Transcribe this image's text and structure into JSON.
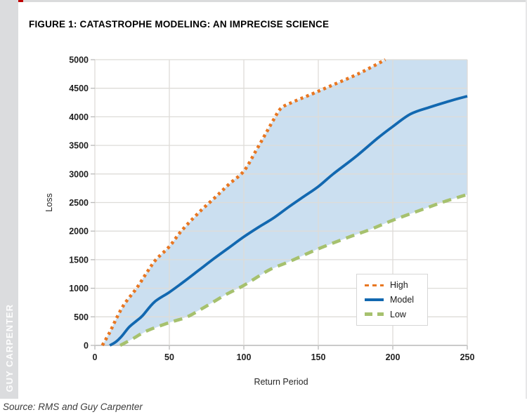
{
  "page": {
    "brand": "GUY CARPENTER",
    "title": "FIGURE 1: CATASTROPHE MODELING: AN IMPRECISE SCIENCE",
    "source": "Source: RMS and Guy Carpenter"
  },
  "colors": {
    "accent_red": "#C00000",
    "sidebar_bg": "#DBDCDE",
    "sidebar_text": "#FDFDFD",
    "grid": "#DEDCD8",
    "axis": "#B9B9B9",
    "band_fill": "#CBDFF0",
    "high": "#E87722",
    "model": "#1268B0",
    "low": "#A6C16E",
    "tick_text": "#1F1F1F"
  },
  "chart_data": {
    "type": "line",
    "title": "",
    "xlabel": "Return Period",
    "ylabel": "Loss",
    "xlim": [
      0,
      250
    ],
    "ylim": [
      0,
      5000
    ],
    "xticks": [
      0,
      50,
      100,
      150,
      200,
      250
    ],
    "yticks": [
      0,
      500,
      1000,
      1500,
      2000,
      2500,
      3000,
      3500,
      4000,
      4500,
      5000
    ],
    "grid": true,
    "band_fill_between": "shaded area between High curve (capped at 5000 beyond Return Period 195) and Low curve",
    "series": [
      {
        "name": "High",
        "style": "dotted",
        "color": "#E87722",
        "points": [
          [
            5,
            0
          ],
          [
            10,
            230
          ],
          [
            15,
            500
          ],
          [
            20,
            730
          ],
          [
            28,
            1000
          ],
          [
            35,
            1280
          ],
          [
            41,
            1500
          ],
          [
            50,
            1730
          ],
          [
            58,
            2000
          ],
          [
            70,
            2330
          ],
          [
            82,
            2620
          ],
          [
            90,
            2820
          ],
          [
            100,
            3050
          ],
          [
            108,
            3400
          ],
          [
            115,
            3720
          ],
          [
            120,
            3950
          ],
          [
            125,
            4150
          ],
          [
            133,
            4260
          ],
          [
            144,
            4380
          ],
          [
            160,
            4560
          ],
          [
            175,
            4730
          ],
          [
            185,
            4860
          ],
          [
            195,
            5000
          ]
        ]
      },
      {
        "name": "Model",
        "style": "solid",
        "color": "#1268B0",
        "points": [
          [
            10,
            0
          ],
          [
            14,
            60
          ],
          [
            18,
            160
          ],
          [
            23,
            320
          ],
          [
            28,
            430
          ],
          [
            32,
            520
          ],
          [
            40,
            760
          ],
          [
            50,
            930
          ],
          [
            60,
            1120
          ],
          [
            70,
            1320
          ],
          [
            80,
            1520
          ],
          [
            90,
            1710
          ],
          [
            100,
            1900
          ],
          [
            110,
            2070
          ],
          [
            120,
            2230
          ],
          [
            130,
            2420
          ],
          [
            140,
            2600
          ],
          [
            150,
            2780
          ],
          [
            160,
            3000
          ],
          [
            175,
            3300
          ],
          [
            190,
            3630
          ],
          [
            200,
            3830
          ],
          [
            212,
            4050
          ],
          [
            225,
            4170
          ],
          [
            240,
            4290
          ],
          [
            250,
            4360
          ]
        ]
      },
      {
        "name": "Low",
        "style": "dashed",
        "color": "#A6C16E",
        "points": [
          [
            17,
            0
          ],
          [
            25,
            110
          ],
          [
            35,
            255
          ],
          [
            50,
            400
          ],
          [
            62,
            500
          ],
          [
            75,
            690
          ],
          [
            88,
            890
          ],
          [
            100,
            1050
          ],
          [
            117,
            1320
          ],
          [
            130,
            1460
          ],
          [
            150,
            1690
          ],
          [
            170,
            1890
          ],
          [
            185,
            2030
          ],
          [
            200,
            2190
          ],
          [
            220,
            2380
          ],
          [
            235,
            2520
          ],
          [
            250,
            2640
          ]
        ]
      }
    ],
    "legend": {
      "position": "inside lower right",
      "entries": [
        {
          "label": "High",
          "style": "dotted",
          "color": "#E87722"
        },
        {
          "label": "Model",
          "style": "solid",
          "color": "#1268B0"
        },
        {
          "label": "Low",
          "style": "dashed",
          "color": "#A6C16E"
        }
      ]
    }
  }
}
